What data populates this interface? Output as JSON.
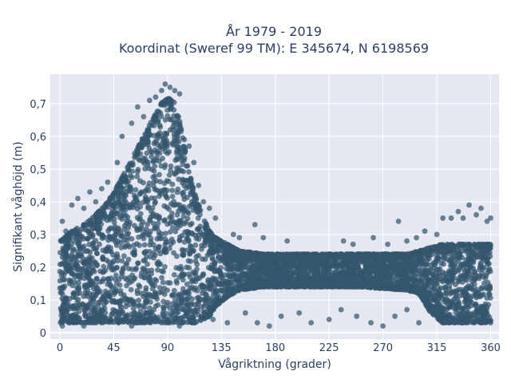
{
  "chart_data": {
    "type": "scatter",
    "title_line1": "År 1979 - 2019",
    "title_line2": "Koordinat (Sweref 99 TM): E 345674, N 6198569",
    "xlabel": "Vågriktning (grader)",
    "ylabel": "Signifikant våghöjd (m)",
    "xlim": [
      -8,
      367
    ],
    "ylim": [
      -0.02,
      0.79
    ],
    "x_ticks": [
      0,
      45,
      90,
      135,
      180,
      225,
      270,
      315,
      360
    ],
    "y_ticks": [
      0,
      0.1,
      0.2,
      0.3,
      0.4,
      0.5,
      0.6,
      0.7
    ],
    "y_tick_labels": [
      "0",
      "0,1",
      "0,2",
      "0,3",
      "0,4",
      "0,5",
      "0,6",
      "0,7"
    ],
    "marker_color": "#34566d",
    "plot_background": "#e5e8f0",
    "grid": true,
    "envelope": {
      "x": [
        0,
        10,
        20,
        30,
        40,
        50,
        60,
        70,
        80,
        88,
        95,
        100,
        105,
        110,
        115,
        120,
        125,
        130,
        140,
        150,
        170,
        200,
        250,
        290,
        300,
        310,
        320,
        330,
        340,
        350,
        360
      ],
      "y_max": [
        0.28,
        0.31,
        0.33,
        0.36,
        0.4,
        0.46,
        0.53,
        0.6,
        0.67,
        0.72,
        0.71,
        0.65,
        0.55,
        0.46,
        0.4,
        0.35,
        0.31,
        0.29,
        0.27,
        0.25,
        0.24,
        0.24,
        0.24,
        0.24,
        0.25,
        0.26,
        0.27,
        0.27,
        0.27,
        0.27,
        0.27
      ],
      "y_min": [
        0.03,
        0.03,
        0.03,
        0.03,
        0.03,
        0.03,
        0.03,
        0.03,
        0.03,
        0.03,
        0.03,
        0.03,
        0.03,
        0.03,
        0.03,
        0.04,
        0.05,
        0.08,
        0.11,
        0.13,
        0.14,
        0.14,
        0.14,
        0.13,
        0.12,
        0.06,
        0.03,
        0.03,
        0.03,
        0.03,
        0.03
      ]
    },
    "outliers": [
      [
        2,
        0.34
      ],
      [
        5,
        0.31
      ],
      [
        10,
        0.39
      ],
      [
        15,
        0.41
      ],
      [
        20,
        0.38
      ],
      [
        25,
        0.43
      ],
      [
        30,
        0.4
      ],
      [
        35,
        0.44
      ],
      [
        40,
        0.46
      ],
      [
        48,
        0.52
      ],
      [
        52,
        0.6
      ],
      [
        60,
        0.64
      ],
      [
        65,
        0.69
      ],
      [
        70,
        0.66
      ],
      [
        75,
        0.71
      ],
      [
        80,
        0.72
      ],
      [
        85,
        0.74
      ],
      [
        88,
        0.76
      ],
      [
        92,
        0.75
      ],
      [
        96,
        0.74
      ],
      [
        100,
        0.73
      ],
      [
        104,
        0.59
      ],
      [
        108,
        0.57
      ],
      [
        112,
        0.52
      ],
      [
        116,
        0.45
      ],
      [
        120,
        0.4
      ],
      [
        125,
        0.38
      ],
      [
        130,
        0.35
      ],
      [
        145,
        0.3
      ],
      [
        150,
        0.29
      ],
      [
        163,
        0.33
      ],
      [
        170,
        0.29
      ],
      [
        190,
        0.28
      ],
      [
        237,
        0.28
      ],
      [
        245,
        0.27
      ],
      [
        262,
        0.29
      ],
      [
        274,
        0.27
      ],
      [
        283,
        0.34
      ],
      [
        290,
        0.28
      ],
      [
        298,
        0.29
      ],
      [
        305,
        0.31
      ],
      [
        315,
        0.3
      ],
      [
        320,
        0.35
      ],
      [
        327,
        0.35
      ],
      [
        333,
        0.37
      ],
      [
        337,
        0.35
      ],
      [
        342,
        0.39
      ],
      [
        348,
        0.36
      ],
      [
        352,
        0.38
      ],
      [
        357,
        0.34
      ],
      [
        360,
        0.35
      ],
      [
        2,
        0.02
      ],
      [
        8,
        0.03
      ],
      [
        20,
        0.02
      ],
      [
        60,
        0.02
      ],
      [
        100,
        0.02
      ],
      [
        128,
        0.04
      ],
      [
        140,
        0.03
      ],
      [
        155,
        0.06
      ],
      [
        165,
        0.03
      ],
      [
        175,
        0.02
      ],
      [
        185,
        0.05
      ],
      [
        200,
        0.06
      ],
      [
        210,
        0.03
      ],
      [
        225,
        0.04
      ],
      [
        235,
        0.07
      ],
      [
        248,
        0.05
      ],
      [
        260,
        0.03
      ],
      [
        270,
        0.02
      ],
      [
        280,
        0.05
      ],
      [
        290,
        0.07
      ],
      [
        300,
        0.03
      ]
    ]
  }
}
